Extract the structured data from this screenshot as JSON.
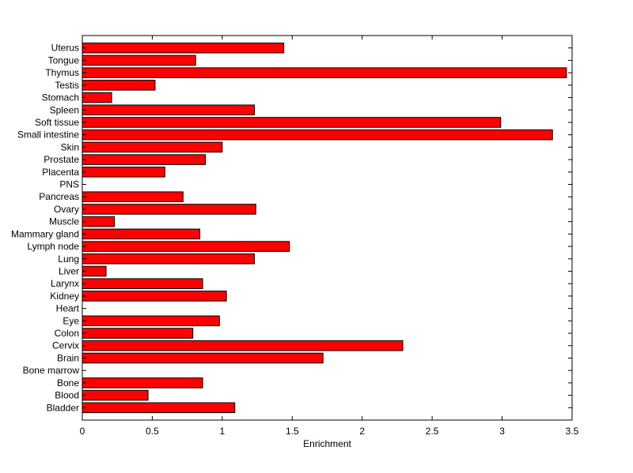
{
  "chart_data": {
    "type": "bar",
    "orientation": "horizontal",
    "title": "",
    "xlabel": "Enrichment",
    "ylabel": "",
    "xlim": [
      0,
      3.5
    ],
    "xticks": [
      "0",
      "0.5",
      "1",
      "1.5",
      "2",
      "2.5",
      "3",
      "3.5"
    ],
    "grid": false,
    "bar_color": "#ff0000",
    "categories": [
      "Bladder",
      "Blood",
      "Bone",
      "Bone marrow",
      "Brain",
      "Cervix",
      "Colon",
      "Eye",
      "Heart",
      "Kidney",
      "Larynx",
      "Liver",
      "Lung",
      "Lymph node",
      "Mammary gland",
      "Muscle",
      "Ovary",
      "Pancreas",
      "PNS",
      "Placenta",
      "Prostate",
      "Skin",
      "Small intestine",
      "Soft tissue",
      "Spleen",
      "Stomach",
      "Testis",
      "Thymus",
      "Tongue",
      "Uterus"
    ],
    "values": [
      1.09,
      0.47,
      0.86,
      0,
      1.72,
      2.29,
      0.79,
      0.98,
      0,
      1.03,
      0.86,
      0.17,
      1.23,
      1.48,
      0.84,
      0.23,
      1.24,
      0.72,
      0,
      0.59,
      0.88,
      1.0,
      3.36,
      2.99,
      1.23,
      0.21,
      0.52,
      3.46,
      0.81,
      1.44
    ]
  }
}
